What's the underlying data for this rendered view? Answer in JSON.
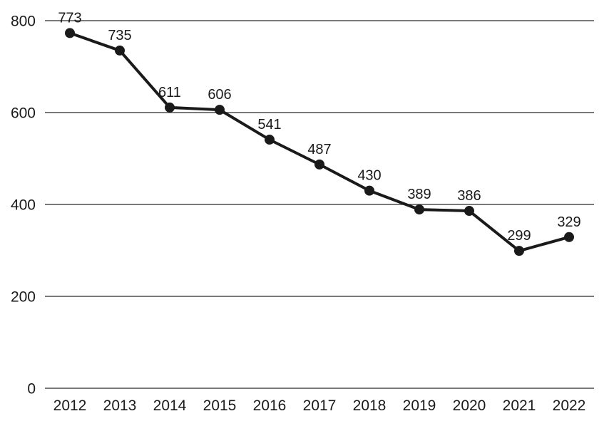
{
  "chart_data": {
    "type": "line",
    "title": "",
    "xlabel": "",
    "ylabel": "",
    "categories": [
      "2012",
      "2013",
      "2014",
      "2015",
      "2016",
      "2017",
      "2018",
      "2019",
      "2020",
      "2021",
      "2022"
    ],
    "series": [
      {
        "name": "values",
        "values": [
          773,
          735,
          611,
          606,
          541,
          487,
          430,
          389,
          386,
          299,
          329
        ]
      }
    ],
    "data_labels": [
      "773",
      "735",
      "611",
      "606",
      "541",
      "487",
      "430",
      "389",
      "386",
      "299",
      "329"
    ],
    "yticks": [
      0,
      200,
      400,
      600,
      800
    ],
    "ytick_labels": [
      "0",
      "200",
      "400",
      "600",
      "800"
    ],
    "ylim": [
      0,
      800
    ],
    "grid": true,
    "legend": false,
    "colors": {
      "line": "#1a1a1a",
      "marker": "#1a1a1a",
      "gridline": "#4d4d4d",
      "text": "#1a1a1a",
      "background": "#ffffff"
    }
  }
}
